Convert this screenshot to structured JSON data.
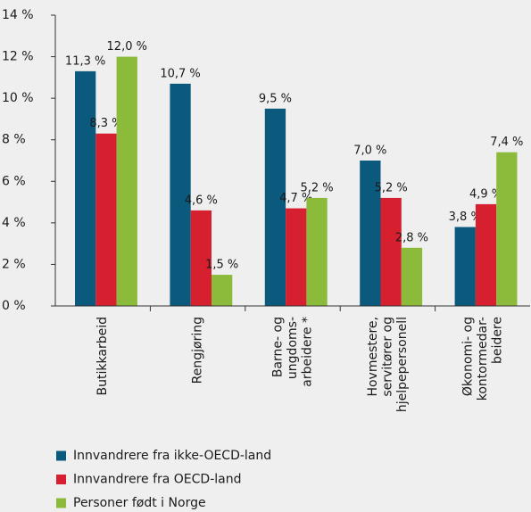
{
  "chart_data": {
    "type": "bar",
    "categories": [
      [
        "Butikkarbeid"
      ],
      [
        "Rengjøring"
      ],
      [
        "Barne- og",
        "ungdoms-",
        "arbeidere *"
      ],
      [
        "Hovmestere,",
        "servitører og",
        "hjelpepersonell"
      ],
      [
        "Økonomi- og",
        "kontormedar-",
        "beidere"
      ]
    ],
    "series": [
      {
        "name": "Innvandrere fra ikke-OECD-land",
        "color": "#0b5a7e",
        "values": [
          11.3,
          10.7,
          9.5,
          7.0,
          3.8
        ],
        "value_labels": [
          "11,3 %",
          "10,7 %",
          "9,5 %",
          "7,0 %",
          "3,8 %"
        ]
      },
      {
        "name": "Innvandrere fra OECD-land",
        "color": "#d7202f",
        "values": [
          8.3,
          4.6,
          4.7,
          5.2,
          4.9
        ],
        "value_labels": [
          "8,3 %",
          "4,6 %",
          "4,7 %",
          "5,2 %",
          "4,9 %"
        ]
      },
      {
        "name": "Personer født i Norge",
        "color": "#8cbb3c",
        "values": [
          12.0,
          1.5,
          5.2,
          2.8,
          7.4
        ],
        "value_labels": [
          "12,0 %",
          "1,5 %",
          "5,2 %",
          "2,8 %",
          "7,4 %"
        ]
      }
    ],
    "ylim": [
      0,
      14
    ],
    "yticks": [
      {
        "value": 0,
        "label": "0 %"
      },
      {
        "value": 2,
        "label": "2 %"
      },
      {
        "value": 4,
        "label": "4 %"
      },
      {
        "value": 6,
        "label": "6 %"
      },
      {
        "value": 8,
        "label": "8 %"
      },
      {
        "value": 10,
        "label": "10 %"
      },
      {
        "value": 12,
        "label": "12 %"
      },
      {
        "value": 14,
        "label": "14 %"
      }
    ],
    "grid": false,
    "legend": "bottom"
  }
}
